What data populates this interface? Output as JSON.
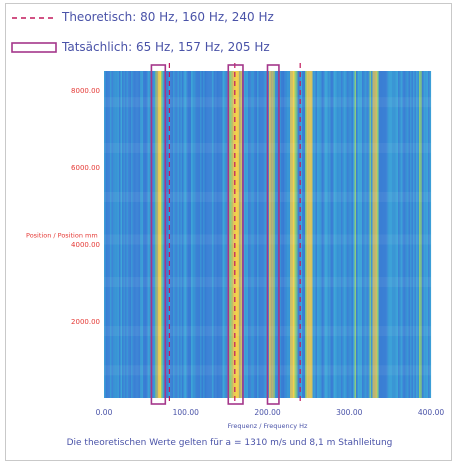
{
  "legend": {
    "theoretical": "Theoretisch: 80 Hz, 160 Hz, 240 Hz",
    "actual": "Tatsächlich: 65 Hz, 157 Hz, 205 Hz"
  },
  "footer": "Die theoretischen Werte gelten für a = 1310 m/s und 8,1 m Stahlleitung",
  "colors": {
    "legend_text": "#4a53a8",
    "dashed": "#c2185b",
    "box": "#a4368a",
    "axis_labels": "#e53935",
    "heat_low": "#2f6fd0",
    "heat_mid": "#3fa8d8",
    "heat_high": "#f7d24a"
  },
  "chart_data": {
    "type": "heatmap",
    "xlabel": "Frequenz / Frequency Hz",
    "ylabel": "Position / Position mm",
    "xlim": [
      0,
      400
    ],
    "ylim": [
      0,
      8500
    ],
    "xticks": [
      "0.00",
      "100.00",
      "200.00",
      "300.00",
      "400.00"
    ],
    "yticks": [
      "2000.00",
      "4000.00",
      "6000.00",
      "8000.00"
    ],
    "xtick_values": [
      0,
      100,
      200,
      300,
      400
    ],
    "ytick_values": [
      2000,
      4000,
      6000,
      8000
    ],
    "theoretical_lines_hz": [
      80,
      160,
      240
    ],
    "actual_boxes_hz": [
      {
        "center": 65,
        "from": 58,
        "to": 75
      },
      {
        "center": 157,
        "from": 152,
        "to": 170
      },
      {
        "center": 205,
        "from": 200,
        "to": 214
      }
    ],
    "bright_bands_hz": [
      65,
      157,
      163,
      205,
      230,
      250,
      330
    ]
  }
}
